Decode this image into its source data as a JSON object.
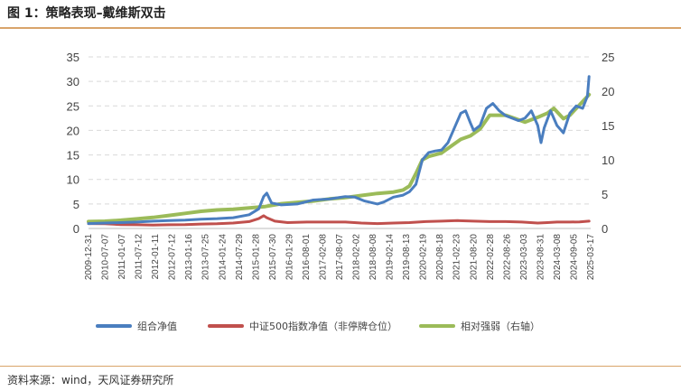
{
  "header": {
    "title": "图 1：策略表现–戴维斯双击"
  },
  "footer": {
    "source": "资料来源：wind，天风证券研究所"
  },
  "colors": {
    "accent": "#d9a46a",
    "portfolio": "#4a7ebf",
    "index": "#c0504d",
    "relative": "#9bbb59"
  },
  "chart_data": {
    "type": "line",
    "title": "",
    "x_ticks": [
      "2009-12-31",
      "2010-07-07",
      "2011-01-07",
      "2011-07-12",
      "2012-01-11",
      "2012-07-12",
      "2013-01-16",
      "2013-07-25",
      "2014-01-24",
      "2014-07-29",
      "2015-01-28",
      "2015-07-30",
      "2016-01-29",
      "2016-08-01",
      "2017-02-08",
      "2017-08-07",
      "2018-02-02",
      "2018-08-08",
      "2019-02-14",
      "2019-08-13",
      "2020-02-19",
      "2020-08-18",
      "2021-02-23",
      "2021-08-20",
      "2022-02-28",
      "2022-08-26",
      "2023-03-03",
      "2023-08-31",
      "2024-03-08",
      "2024-09-05",
      "2025-03-17"
    ],
    "y_left": {
      "min": 0,
      "max": 35,
      "ticks": [
        0,
        5,
        10,
        15,
        20,
        25,
        30,
        35
      ]
    },
    "y_right": {
      "min": 0,
      "max": 25,
      "ticks": [
        0,
        5,
        10,
        15,
        20,
        25
      ]
    },
    "grid": "horizontal-dashed",
    "legend_position": "bottom",
    "series": [
      {
        "name": "组合净值",
        "axis": "left",
        "color": "#4a7ebf",
        "x": [
          2009.99,
          2010.5,
          2011.0,
          2011.5,
          2012.0,
          2012.5,
          2013.0,
          2013.5,
          2014.0,
          2014.5,
          2015.0,
          2015.3,
          2015.45,
          2015.55,
          2015.7,
          2016.0,
          2016.5,
          2017.0,
          2017.5,
          2018.0,
          2018.3,
          2018.6,
          2019.0,
          2019.2,
          2019.5,
          2019.8,
          2020.0,
          2020.2,
          2020.4,
          2020.6,
          2020.8,
          2021.0,
          2021.2,
          2021.4,
          2021.6,
          2021.75,
          2021.9,
          2022.0,
          2022.2,
          2022.4,
          2022.6,
          2022.8,
          2023.0,
          2023.2,
          2023.4,
          2023.6,
          2023.8,
          2024.0,
          2024.1,
          2024.2,
          2024.4,
          2024.6,
          2024.8,
          2025.0,
          2025.2,
          2025.4,
          2025.55,
          2025.6
        ],
        "y": [
          1.0,
          1.1,
          1.2,
          1.3,
          1.5,
          1.6,
          1.7,
          1.9,
          2.0,
          2.2,
          2.8,
          4.0,
          6.5,
          7.2,
          5.2,
          4.8,
          5.0,
          5.8,
          6.0,
          6.5,
          6.4,
          5.6,
          5.0,
          5.4,
          6.4,
          6.8,
          7.5,
          9.0,
          14.0,
          15.5,
          15.8,
          16.0,
          17.5,
          20.5,
          23.5,
          24.0,
          21.5,
          20.0,
          21.0,
          24.5,
          25.5,
          24.0,
          23.0,
          22.5,
          22.0,
          22.5,
          24.0,
          21.0,
          17.5,
          20.5,
          24.0,
          21.0,
          19.5,
          23.5,
          25.0,
          24.5,
          27.0,
          31.0
        ]
      },
      {
        "name": "中证500指数净值（非停牌仓位）",
        "axis": "left",
        "color": "#c0504d",
        "x": [
          2009.99,
          2010.5,
          2011.0,
          2011.5,
          2012.0,
          2012.5,
          2013.0,
          2013.5,
          2014.0,
          2014.5,
          2015.0,
          2015.3,
          2015.45,
          2015.55,
          2015.8,
          2016.2,
          2016.8,
          2017.5,
          2018.0,
          2018.5,
          2019.0,
          2019.5,
          2020.0,
          2020.5,
          2021.0,
          2021.5,
          2022.0,
          2022.5,
          2023.0,
          2023.5,
          2024.0,
          2024.3,
          2024.6,
          2025.0,
          2025.3,
          2025.6
        ],
        "y": [
          1.0,
          0.95,
          0.8,
          0.75,
          0.7,
          0.75,
          0.8,
          0.9,
          0.95,
          1.1,
          1.4,
          2.0,
          2.6,
          2.2,
          1.5,
          1.2,
          1.3,
          1.3,
          1.3,
          1.1,
          1.0,
          1.1,
          1.2,
          1.4,
          1.5,
          1.6,
          1.5,
          1.4,
          1.4,
          1.3,
          1.1,
          1.2,
          1.3,
          1.3,
          1.35,
          1.5
        ]
      },
      {
        "name": "相对强弱（右轴）",
        "axis": "right",
        "color": "#9bbb59",
        "x": [
          2009.99,
          2010.5,
          2011.0,
          2011.5,
          2012.0,
          2012.5,
          2013.0,
          2013.5,
          2014.0,
          2014.5,
          2015.0,
          2015.5,
          2016.0,
          2016.5,
          2017.0,
          2017.5,
          2018.0,
          2018.5,
          2019.0,
          2019.5,
          2019.8,
          2020.0,
          2020.2,
          2020.4,
          2020.6,
          2021.0,
          2021.3,
          2021.6,
          2021.9,
          2022.2,
          2022.5,
          2022.8,
          2023.0,
          2023.3,
          2023.6,
          2024.0,
          2024.3,
          2024.5,
          2024.8,
          2025.0,
          2025.3,
          2025.6
        ],
        "y": [
          1.0,
          1.05,
          1.2,
          1.4,
          1.6,
          1.9,
          2.2,
          2.5,
          2.7,
          2.8,
          3.0,
          3.2,
          3.6,
          3.8,
          4.0,
          4.3,
          4.5,
          4.8,
          5.1,
          5.3,
          5.6,
          6.2,
          8.0,
          10.0,
          10.5,
          11.0,
          12.0,
          13.0,
          13.5,
          14.5,
          16.5,
          16.5,
          16.5,
          16.0,
          15.5,
          16.2,
          16.8,
          17.5,
          16.0,
          16.5,
          18.0,
          19.5
        ]
      }
    ]
  }
}
